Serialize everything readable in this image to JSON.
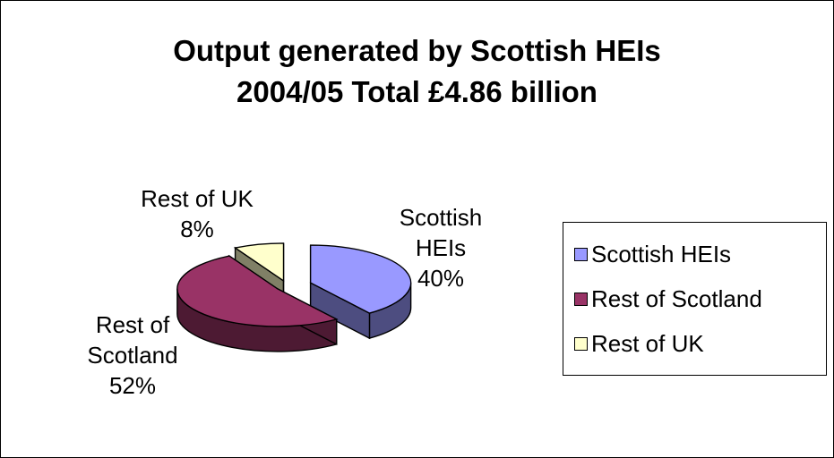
{
  "chart_data": {
    "type": "pie",
    "title_lines": [
      "Output generated by Scottish HEIs",
      "2004/05 Total £4.86 billion"
    ],
    "slices": [
      {
        "name": "Scottish HEIs",
        "label_lines": [
          "Scottish",
          "HEIs",
          "40%"
        ],
        "value": 40,
        "color": "#9999FF",
        "side_color": "#4D4D80"
      },
      {
        "name": "Rest of Scotland",
        "label_lines": [
          "Rest of",
          "Scotland",
          "52%"
        ],
        "value": 52,
        "color": "#993366",
        "side_color": "#4D1A33"
      },
      {
        "name": "Rest of UK",
        "label_lines": [
          "Rest of UK",
          "8%"
        ],
        "value": 8,
        "color": "#FFFFCC",
        "side_color": "#808066"
      }
    ],
    "legend": [
      "Scottish HEIs",
      "Rest of Scotland",
      "Rest of UK"
    ],
    "legend_position": "right",
    "style": "3d-exploded"
  }
}
